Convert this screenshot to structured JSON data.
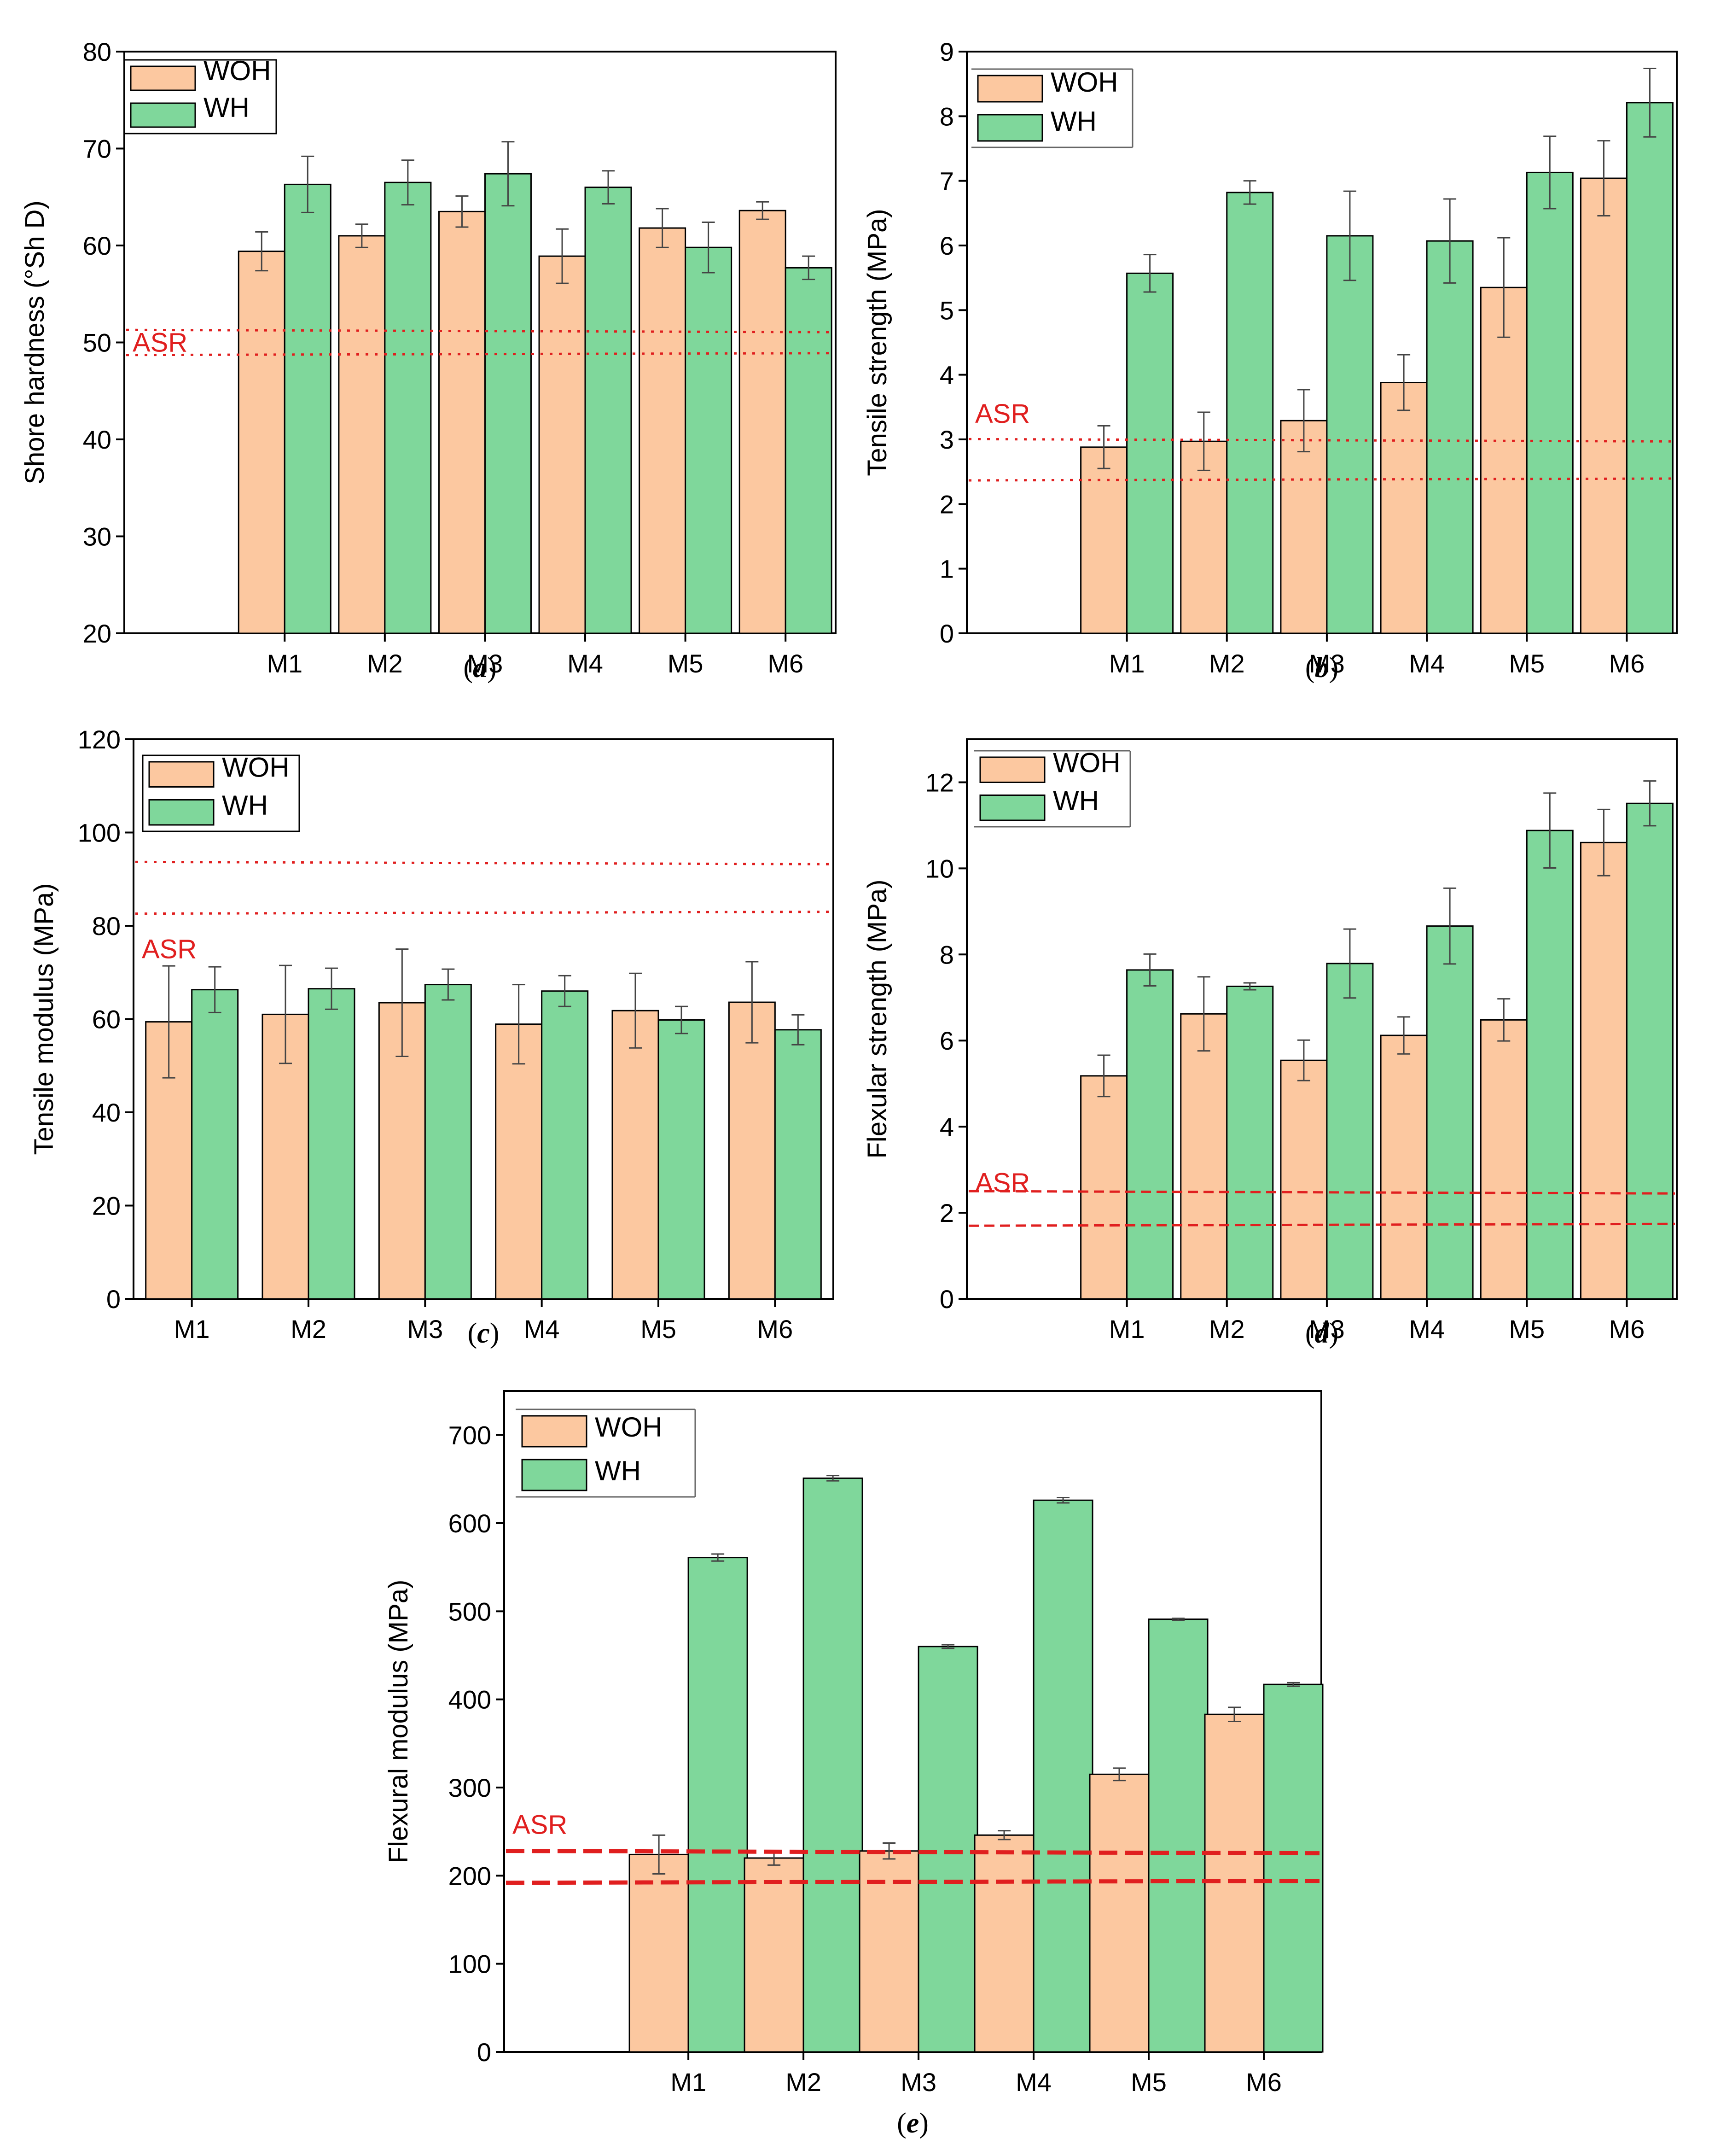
{
  "chart_data": [
    {
      "id": "a",
      "type": "bar",
      "caption": {
        "open": "(",
        "letter": "a",
        "close": ")"
      },
      "ylabel": "Shore hardness (°Sh D)",
      "ylim": [
        20,
        80
      ],
      "yticks": [
        20,
        30,
        40,
        50,
        60,
        70,
        80
      ],
      "categories": [
        "M1",
        "M2",
        "M3",
        "M4",
        "M5",
        "M6"
      ],
      "series": [
        {
          "name": "WOH",
          "values": [
            59.4,
            61.0,
            63.5,
            58.9,
            61.8,
            63.6
          ],
          "err": [
            2.0,
            1.2,
            1.6,
            2.8,
            2.0,
            0.9
          ]
        },
        {
          "name": "WH",
          "values": [
            66.3,
            66.5,
            67.4,
            66.0,
            59.8,
            57.7
          ],
          "err": [
            2.9,
            2.3,
            3.3,
            1.7,
            2.6,
            1.2
          ]
        }
      ],
      "asr": {
        "label": "ASR",
        "lines": [
          51.2,
          48.8
        ],
        "style": "dotted"
      }
    },
    {
      "id": "b",
      "type": "bar",
      "caption": {
        "open": "(",
        "letter": "b",
        "close": ")"
      },
      "ylabel": "Tensile strength (MPa)",
      "ylim": [
        0,
        9
      ],
      "yticks": [
        0,
        1,
        2,
        3,
        4,
        5,
        6,
        7,
        8,
        9
      ],
      "categories": [
        "M1",
        "M2",
        "M3",
        "M4",
        "M5",
        "M6"
      ],
      "series": [
        {
          "name": "WOH",
          "values": [
            2.88,
            2.97,
            3.29,
            3.88,
            5.35,
            7.04
          ],
          "err": [
            0.33,
            0.45,
            0.48,
            0.43,
            0.77,
            0.58
          ]
        },
        {
          "name": "WH",
          "values": [
            5.57,
            6.82,
            6.15,
            6.07,
            7.13,
            8.21
          ],
          "err": [
            0.29,
            0.18,
            0.69,
            0.65,
            0.56,
            0.53
          ]
        }
      ],
      "asr": {
        "label": "ASR",
        "lines": [
          2.99,
          2.38
        ],
        "style": "dotted"
      }
    },
    {
      "id": "c",
      "type": "bar",
      "caption": {
        "open": "(",
        "letter": "c",
        "close": ")"
      },
      "ylabel": "Tensile modulus (MPa)",
      "ylim": [
        0,
        120
      ],
      "yticks": [
        0,
        20,
        40,
        60,
        80,
        100,
        120
      ],
      "categories": [
        "M1",
        "M2",
        "M3",
        "M4",
        "M5",
        "M6"
      ],
      "series": [
        {
          "name": "WOH",
          "values": [
            59.4,
            61.0,
            63.5,
            58.9,
            61.8,
            63.6
          ],
          "err": [
            12.0,
            10.5,
            11.5,
            8.5,
            8.0,
            8.7
          ]
        },
        {
          "name": "WH",
          "values": [
            66.3,
            66.5,
            67.4,
            66.0,
            59.8,
            57.7
          ],
          "err": [
            4.9,
            4.4,
            3.3,
            3.3,
            2.9,
            3.2
          ]
        }
      ],
      "asr": {
        "label": "ASR",
        "lines": [
          93.5,
          82.8
        ],
        "style": "dotted"
      }
    },
    {
      "id": "d",
      "type": "bar",
      "caption": {
        "open": "(",
        "letter": "d",
        "close": ")"
      },
      "ylabel": "Flexular strength (MPa)",
      "ylim": [
        0,
        13
      ],
      "yticks": [
        0,
        2,
        4,
        6,
        8,
        10,
        12
      ],
      "categories": [
        "M1",
        "M2",
        "M3",
        "M4",
        "M5",
        "M6"
      ],
      "series": [
        {
          "name": "WOH",
          "values": [
            5.18,
            6.62,
            5.54,
            6.12,
            6.48,
            10.6
          ],
          "err": [
            0.48,
            0.86,
            0.47,
            0.43,
            0.49,
            0.77
          ]
        },
        {
          "name": "WH",
          "values": [
            7.64,
            7.26,
            7.79,
            8.66,
            10.88,
            11.51
          ],
          "err": [
            0.37,
            0.08,
            0.8,
            0.88,
            0.87,
            0.52
          ]
        }
      ],
      "asr": {
        "label": "ASR",
        "lines": [
          2.48,
          1.72
        ],
        "style": "dashed"
      }
    },
    {
      "id": "e",
      "type": "bar",
      "caption": {
        "open": "(",
        "letter": "e",
        "close": ")"
      },
      "ylabel": "Flexural modulus (MPa)",
      "ylim": [
        0,
        750
      ],
      "yticks": [
        0,
        100,
        200,
        300,
        400,
        500,
        600,
        700
      ],
      "categories": [
        "M1",
        "M2",
        "M3",
        "M4",
        "M5",
        "M6"
      ],
      "series": [
        {
          "name": "WOH",
          "values": [
            224,
            220,
            228,
            246,
            315,
            383
          ],
          "err": [
            22,
            8,
            9,
            5,
            7,
            8
          ]
        },
        {
          "name": "WH",
          "values": [
            561,
            651,
            460,
            626,
            491,
            417
          ],
          "err": [
            4,
            3,
            2,
            3,
            1,
            2
          ]
        }
      ],
      "asr": {
        "label": "ASR",
        "lines": [
          227,
          193
        ],
        "style": "thick-dashed"
      }
    }
  ],
  "colors": {
    "woh": "#fcc8a0",
    "wh": "#7fd79b",
    "asr": "#e01f1f",
    "axis": "#000000",
    "err": "#444444"
  }
}
